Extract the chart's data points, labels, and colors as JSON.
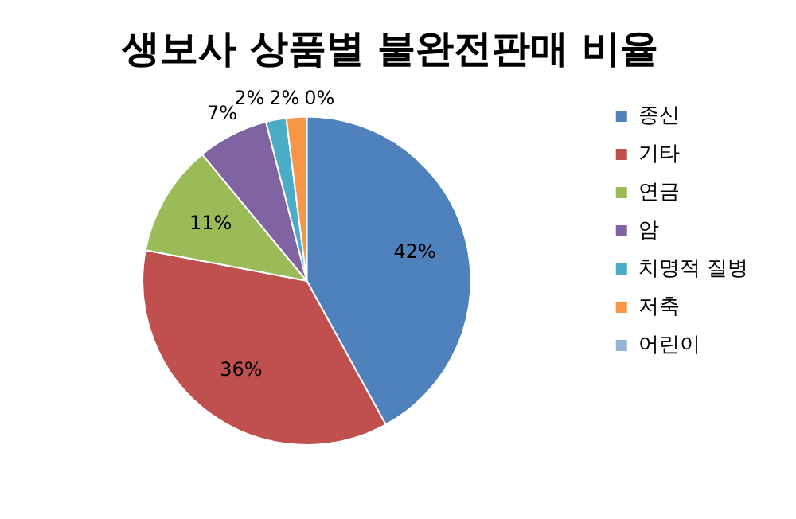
{
  "chart_data": {
    "type": "pie",
    "title": "생보사 상품별 불완전판매 비율",
    "categories": [
      "종신",
      "기타",
      "연금",
      "암",
      "치명적 질병",
      "저축",
      "어린이"
    ],
    "values": [
      42,
      36,
      11,
      7,
      2,
      2,
      0
    ],
    "value_labels": [
      "42%",
      "36%",
      "11%",
      "7%",
      "2%",
      "2%",
      "0%"
    ],
    "colors": [
      "#4f81bd",
      "#c0504d",
      "#9bbb59",
      "#8064a2",
      "#4bacc6",
      "#f79646",
      "#95b3d7"
    ],
    "legend": "right"
  }
}
